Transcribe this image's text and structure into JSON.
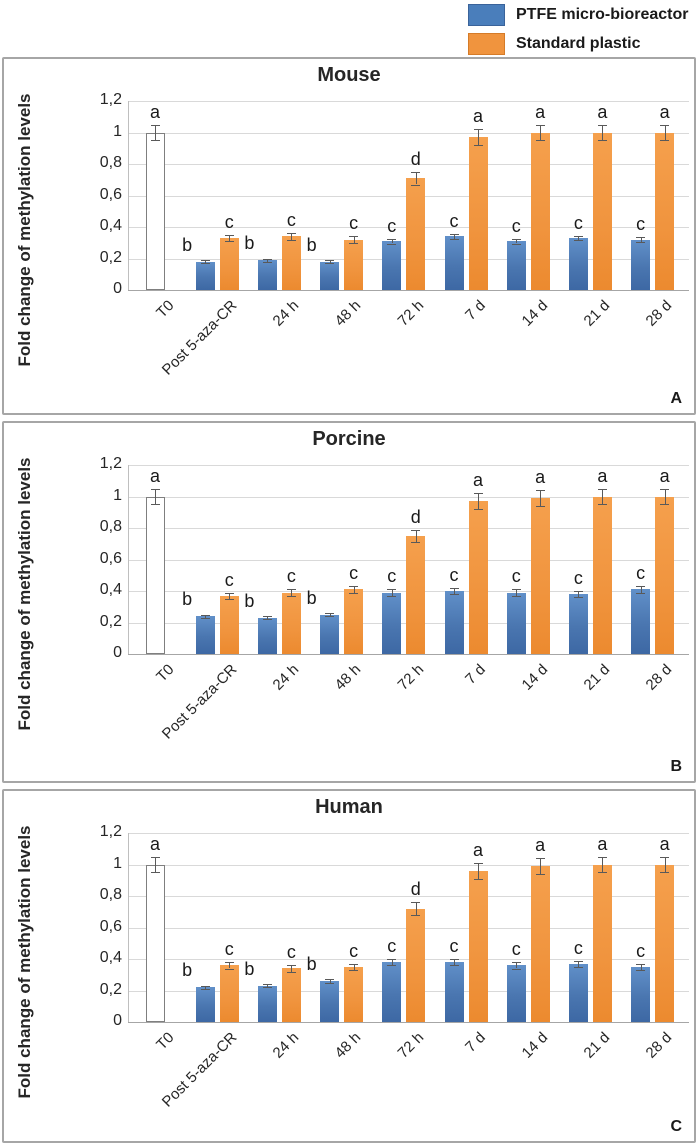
{
  "legend": {
    "items": [
      {
        "label": "PTFE micro-bioreactor",
        "color": "#4a7ebb"
      },
      {
        "label": "Standard plastic",
        "color": "#f0943e"
      }
    ]
  },
  "axis": {
    "ylabel": "Fold change of methylation levels",
    "ytick_labels": [
      "1,2",
      "1",
      "0,8",
      "0,6",
      "0,4",
      "0,2",
      "0"
    ],
    "ytick_values": [
      1.2,
      1.0,
      0.8,
      0.6,
      0.4,
      0.2,
      0
    ],
    "grid": "horizontal"
  },
  "chart_data": [
    {
      "type": "bar",
      "panel_label": "A",
      "title": "Mouse",
      "ylabel": "Fold change of methylation levels",
      "ylim": [
        0,
        1.2
      ],
      "categories": [
        "T0",
        "Post 5-aza-CR",
        "24 h",
        "48 h",
        "72 h",
        "7 d",
        "14 d",
        "21 d",
        "28 d"
      ],
      "series": [
        {
          "name": "T0",
          "color": "#ffffff",
          "values": [
            1.0,
            null,
            null,
            null,
            null,
            null,
            null,
            null,
            null
          ],
          "errors": [
            0.05,
            null,
            null,
            null,
            null,
            null,
            null,
            null,
            null
          ],
          "letters": [
            "a",
            null,
            null,
            null,
            null,
            null,
            null,
            null,
            null
          ]
        },
        {
          "name": "PTFE micro-bioreactor",
          "color": "#4a7ebb",
          "values": [
            null,
            0.18,
            0.19,
            0.18,
            0.31,
            0.34,
            0.31,
            0.33,
            0.32
          ],
          "errors": [
            null,
            0.01,
            0.01,
            0.01,
            0.015,
            0.015,
            0.015,
            0.015,
            0.015
          ],
          "letters": [
            null,
            "b",
            "b",
            "b",
            "c",
            "c",
            "c",
            "c",
            "c"
          ]
        },
        {
          "name": "Standard plastic",
          "color": "#f0943e",
          "values": [
            null,
            0.33,
            0.34,
            0.32,
            0.71,
            0.97,
            1.0,
            1.0,
            1.0
          ],
          "errors": [
            null,
            0.02,
            0.02,
            0.02,
            0.04,
            0.05,
            0.05,
            0.05,
            0.05
          ],
          "letters": [
            null,
            "c",
            "c",
            "c",
            "d",
            "a",
            "a",
            "a",
            "a"
          ]
        }
      ]
    },
    {
      "type": "bar",
      "panel_label": "B",
      "title": "Porcine",
      "ylabel": "Fold change of methylation levels",
      "ylim": [
        0,
        1.2
      ],
      "categories": [
        "T0",
        "Post 5-aza-CR",
        "24 h",
        "48 h",
        "72 h",
        "7 d",
        "14 d",
        "21 d",
        "28 d"
      ],
      "series": [
        {
          "name": "T0",
          "color": "#ffffff",
          "values": [
            1.0,
            null,
            null,
            null,
            null,
            null,
            null,
            null,
            null
          ],
          "errors": [
            0.05,
            null,
            null,
            null,
            null,
            null,
            null,
            null,
            null
          ],
          "letters": [
            "a",
            null,
            null,
            null,
            null,
            null,
            null,
            null,
            null
          ]
        },
        {
          "name": "PTFE micro-bioreactor",
          "color": "#4a7ebb",
          "values": [
            null,
            0.24,
            0.23,
            0.25,
            0.39,
            0.4,
            0.39,
            0.38,
            0.41
          ],
          "errors": [
            null,
            0.01,
            0.01,
            0.01,
            0.02,
            0.02,
            0.02,
            0.02,
            0.02
          ],
          "letters": [
            null,
            "b",
            "b",
            "b",
            "c",
            "c",
            "c",
            "c",
            "c"
          ]
        },
        {
          "name": "Standard plastic",
          "color": "#f0943e",
          "values": [
            null,
            0.37,
            0.39,
            0.41,
            0.75,
            0.97,
            0.99,
            1.0,
            1.0
          ],
          "errors": [
            null,
            0.02,
            0.02,
            0.02,
            0.04,
            0.05,
            0.05,
            0.05,
            0.05
          ],
          "letters": [
            null,
            "c",
            "c",
            "c",
            "d",
            "a",
            "a",
            "a",
            "a"
          ]
        }
      ]
    },
    {
      "type": "bar",
      "panel_label": "C",
      "title": "Human",
      "ylabel": "Fold change of methylation levels",
      "ylim": [
        0,
        1.2
      ],
      "categories": [
        "T0",
        "Post 5-aza-CR",
        "24 h",
        "48 h",
        "72 h",
        "7 d",
        "14 d",
        "21 d",
        "28 d"
      ],
      "series": [
        {
          "name": "T0",
          "color": "#ffffff",
          "values": [
            1.0,
            null,
            null,
            null,
            null,
            null,
            null,
            null,
            null
          ],
          "errors": [
            0.05,
            null,
            null,
            null,
            null,
            null,
            null,
            null,
            null
          ],
          "letters": [
            "a",
            null,
            null,
            null,
            null,
            null,
            null,
            null,
            null
          ]
        },
        {
          "name": "PTFE micro-bioreactor",
          "color": "#4a7ebb",
          "values": [
            null,
            0.22,
            0.23,
            0.26,
            0.38,
            0.38,
            0.36,
            0.37,
            0.35
          ],
          "errors": [
            null,
            0.01,
            0.01,
            0.015,
            0.02,
            0.02,
            0.02,
            0.02,
            0.02
          ],
          "letters": [
            null,
            "b",
            "b",
            "b",
            "c",
            "c",
            "c",
            "c",
            "c"
          ]
        },
        {
          "name": "Standard plastic",
          "color": "#f0943e",
          "values": [
            null,
            0.36,
            0.34,
            0.35,
            0.72,
            0.96,
            0.99,
            1.0,
            1.0
          ],
          "errors": [
            null,
            0.02,
            0.02,
            0.02,
            0.04,
            0.05,
            0.05,
            0.05,
            0.05
          ],
          "letters": [
            null,
            "c",
            "c",
            "c",
            "d",
            "a",
            "a",
            "a",
            "a"
          ]
        }
      ]
    }
  ]
}
